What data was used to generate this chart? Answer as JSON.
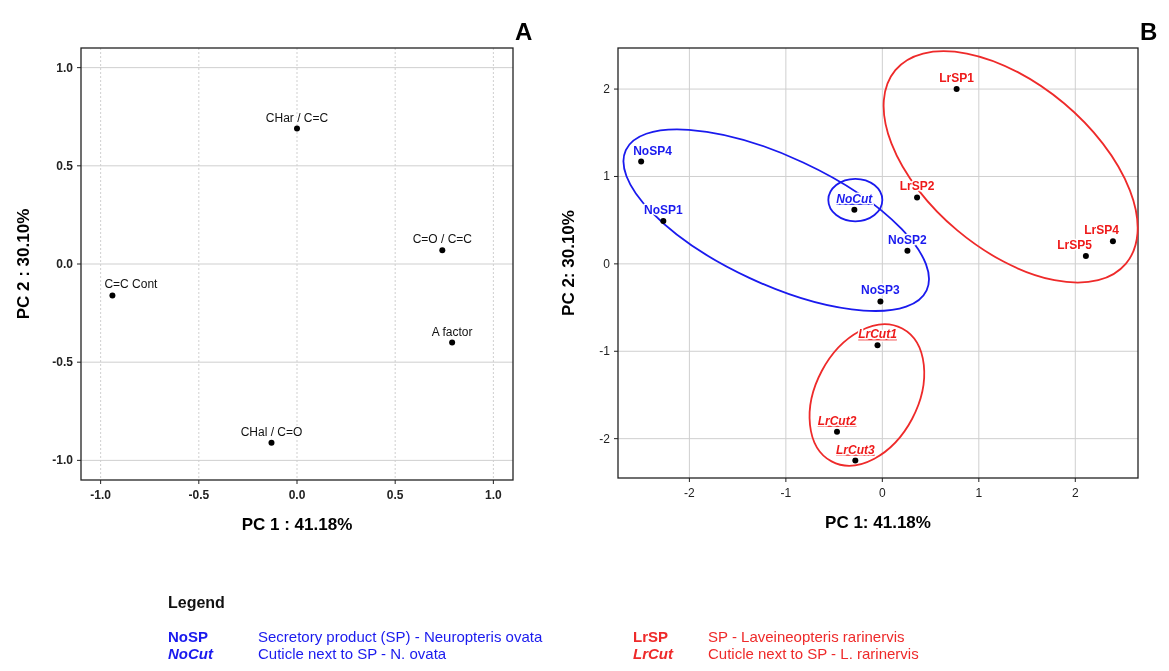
{
  "chart_data": [
    {
      "type": "scatter",
      "title": "A",
      "xlabel": "PC 1 : 41.18%",
      "ylabel": "PC 2 : 30.10%",
      "xlim": [
        -1.1,
        1.1
      ],
      "ylim": [
        -1.1,
        1.1
      ],
      "xticks": [
        {
          "value": -1,
          "label": "-1.0"
        },
        -0.5,
        {
          "value": 0,
          "label": "0.0"
        },
        0.5,
        {
          "value": 1,
          "label": "1.0"
        }
      ],
      "yticks": [
        {
          "value": -1,
          "label": "-1.0"
        },
        -0.5,
        {
          "value": 0,
          "label": "0.0"
        },
        0.5,
        {
          "value": 1,
          "label": "1.0"
        }
      ],
      "grid": true,
      "marker": "circle",
      "series": [
        {
          "color": "#000000",
          "x": [
            0.0,
            0.74,
            -0.94,
            0.79,
            -0.13
          ],
          "values": [
            0.69,
            0.07,
            -0.16,
            -0.4,
            -0.91
          ],
          "value_labels": [
            "CHar / C=C",
            "C=O / C=C",
            "C=C Cont",
            "A factor",
            "CHal / C=O"
          ]
        }
      ]
    },
    {
      "type": "scatter",
      "title": "B",
      "xlabel": "PC 1: 41.18%",
      "ylabel": "PC 2: 30.10%",
      "xlim": [
        -2.74,
        2.65
      ],
      "ylim": [
        -2.45,
        2.47
      ],
      "xticks": [
        -2,
        -1,
        0,
        1,
        2
      ],
      "yticks": [
        -2,
        -1,
        0,
        1,
        2
      ],
      "grid": true,
      "marker": "circle",
      "series": [
        {
          "color": "#000000",
          "x": [
            -2.5,
            -2.27,
            0.26,
            -0.02
          ],
          "values": [
            1.17,
            0.49,
            0.15,
            -0.43
          ],
          "value_labels": [
            "NoSP4",
            "NoSP1",
            "NoSP2",
            "NoSP3"
          ]
        },
        {
          "color": "#000000",
          "x": [
            -0.29
          ],
          "values": [
            0.62
          ],
          "value_labels": [
            "NoCut"
          ]
        },
        {
          "color": "#000000",
          "x": [
            0.77,
            0.36,
            2.39,
            2.11
          ],
          "values": [
            2.0,
            0.76,
            0.26,
            0.09
          ],
          "value_labels": [
            "LrSP1",
            "LrSP2",
            "LrSP4",
            "LrSP5"
          ]
        },
        {
          "color": "#000000",
          "x": [
            -0.05,
            -0.47,
            -0.28
          ],
          "values": [
            -0.93,
            -1.92,
            -2.25
          ],
          "value_labels": [
            "LrCut1",
            "LrCut2",
            "LrCut3"
          ]
        }
      ],
      "annotations": [
        "Legend",
        "NoSP",
        "Secretory product (SP) - Neuropteris ovata",
        "LrSP",
        "SP - Laveineopteris rarinervis",
        "NoCut",
        "Cuticle next to SP - N. ovata",
        "LrCut",
        "Cuticle next to SP - L. rarinervis"
      ]
    }
  ]
}
